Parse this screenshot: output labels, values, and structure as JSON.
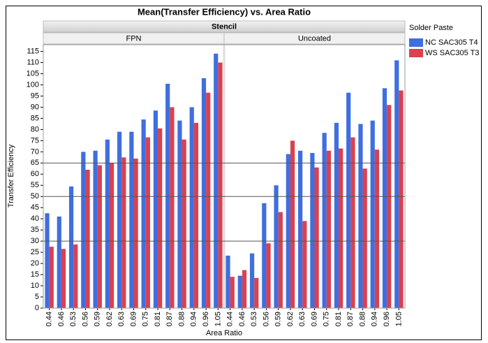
{
  "chart_data": {
    "type": "bar",
    "title": "Mean(Transfer Efficiency) vs. Area Ratio",
    "facet_title": "Stencil",
    "x_label": "Area Ratio",
    "y_label": "Transfer Efficiency",
    "legend_title": "Solder Paste",
    "legend_position": "right",
    "ylim": [
      0,
      118
    ],
    "yticks": [
      0,
      5,
      10,
      15,
      20,
      25,
      30,
      35,
      40,
      45,
      50,
      55,
      60,
      65,
      70,
      75,
      80,
      85,
      90,
      95,
      100,
      105,
      110,
      115
    ],
    "reference_lines": [
      30,
      50,
      65
    ],
    "panels": [
      {
        "name": "FPN",
        "categories": [
          "0.44",
          "0.46",
          "0.53",
          "0.56",
          "0.59",
          "0.62",
          "0.63",
          "0.69",
          "0.75",
          "0.81",
          "0.87",
          "0.88",
          "0.94",
          "0.96",
          "1.05"
        ],
        "series": [
          {
            "name": "NC SAC305 T4",
            "color": "#3f6ee0",
            "values": [
              42.5,
              41,
              54.5,
              70,
              70.5,
              75.5,
              79,
              79,
              84.5,
              88.5,
              100.5,
              84,
              90,
              103,
              114
            ]
          },
          {
            "name": "WS SAC305 T3",
            "color": "#d9414f",
            "values": [
              27.5,
              26.5,
              28.5,
              62,
              64,
              65,
              67.5,
              67,
              76.5,
              80.5,
              90,
              75.5,
              83,
              96.5,
              110
            ]
          }
        ]
      },
      {
        "name": "Uncoated",
        "categories": [
          "0.44",
          "0.46",
          "0.53",
          "0.56",
          "0.59",
          "0.62",
          "0.63",
          "0.69",
          "0.75",
          "0.81",
          "0.87",
          "0.88",
          "0.94",
          "0.96",
          "1.05"
        ],
        "series": [
          {
            "name": "NC SAC305 T4",
            "color": "#3f6ee0",
            "values": [
              23.5,
              14.5,
              24.5,
              47,
              55,
              69,
              70.5,
              69.5,
              78.5,
              83,
              96.5,
              82.5,
              84,
              98.5,
              111
            ]
          },
          {
            "name": "WS SAC305 T3",
            "color": "#d9414f",
            "values": [
              14,
              17,
              13.5,
              29,
              43,
              75,
              39,
              63,
              70.5,
              71.5,
              76.5,
              62.5,
              71,
              91,
              97.5
            ]
          }
        ]
      }
    ]
  }
}
